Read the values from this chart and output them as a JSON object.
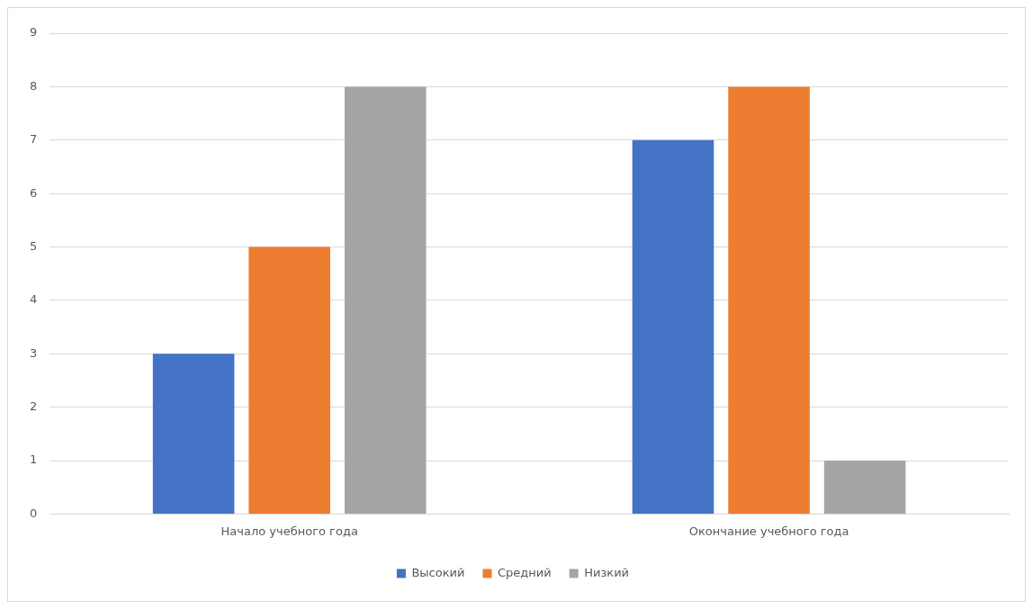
{
  "chart_data": {
    "type": "bar",
    "categories": [
      "Начало учебного года",
      "Окончание учебного года"
    ],
    "series": [
      {
        "name": "Высокий",
        "color": "#4472c4",
        "values": [
          3,
          7
        ]
      },
      {
        "name": "Средний",
        "color": "#ed7d31",
        "values": [
          5,
          8
        ]
      },
      {
        "name": "Низкий",
        "color": "#a5a5a5",
        "values": [
          8,
          1
        ]
      }
    ],
    "ylim": [
      0,
      9
    ],
    "yticks": [
      0,
      1,
      2,
      3,
      4,
      5,
      6,
      7,
      8,
      9
    ],
    "grid": "y",
    "legend": "bottom"
  }
}
